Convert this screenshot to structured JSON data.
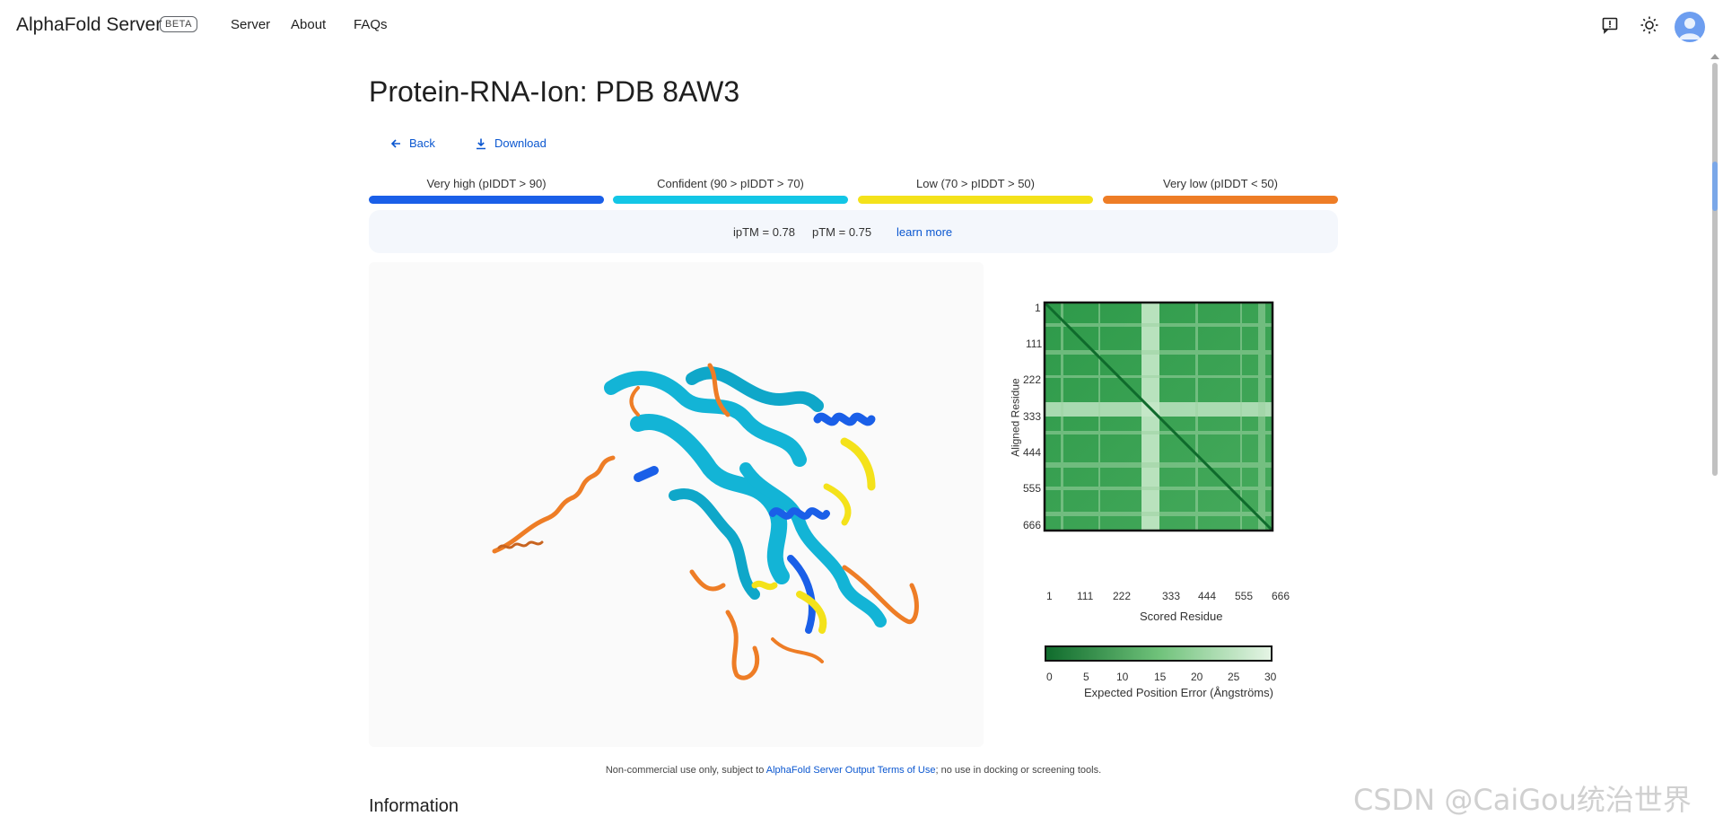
{
  "header": {
    "brand": "AlphaFold Server",
    "badge": "BETA",
    "nav": [
      "Server",
      "About",
      "FAQs"
    ]
  },
  "page": {
    "title": "Protein-RNA-Ion: PDB 8AW3",
    "back_label": "Back",
    "download_label": "Download"
  },
  "confidence_legend": [
    {
      "label": "Very high (pIDDT > 90)",
      "color": "#1a5fe8"
    },
    {
      "label": "Confident (90 > pIDDT > 70)",
      "color": "#13c6e6"
    },
    {
      "label": "Low (70 > pIDDT > 50)",
      "color": "#f4e21a"
    },
    {
      "label": "Very low (pIDDT < 50)",
      "color": "#ee7d26"
    }
  ],
  "metrics": {
    "iptm": "ipTM = 0.78",
    "ptm": "pTM = 0.75",
    "learn_more": "learn more"
  },
  "pae": {
    "y_ticks": [
      "1",
      "111",
      "222",
      "333",
      "444",
      "555",
      "666"
    ],
    "x_ticks": [
      "1",
      "111",
      "222",
      "333",
      "444",
      "555",
      "666"
    ],
    "x_label": "Scored Residue",
    "y_label": "Aligned Residue",
    "colorbar_ticks": [
      "0",
      "5",
      "10",
      "15",
      "20",
      "25",
      "30"
    ],
    "colorbar_label": "Expected Position Error (Ångströms)"
  },
  "footer": {
    "note_prefix": "Non-commercial use only, subject to ",
    "note_link": "AlphaFold Server Output Terms of Use",
    "note_suffix": "; no use in docking or screening tools.",
    "section_title": "Information"
  },
  "watermark": "CSDN @CaiGou统治世界"
}
